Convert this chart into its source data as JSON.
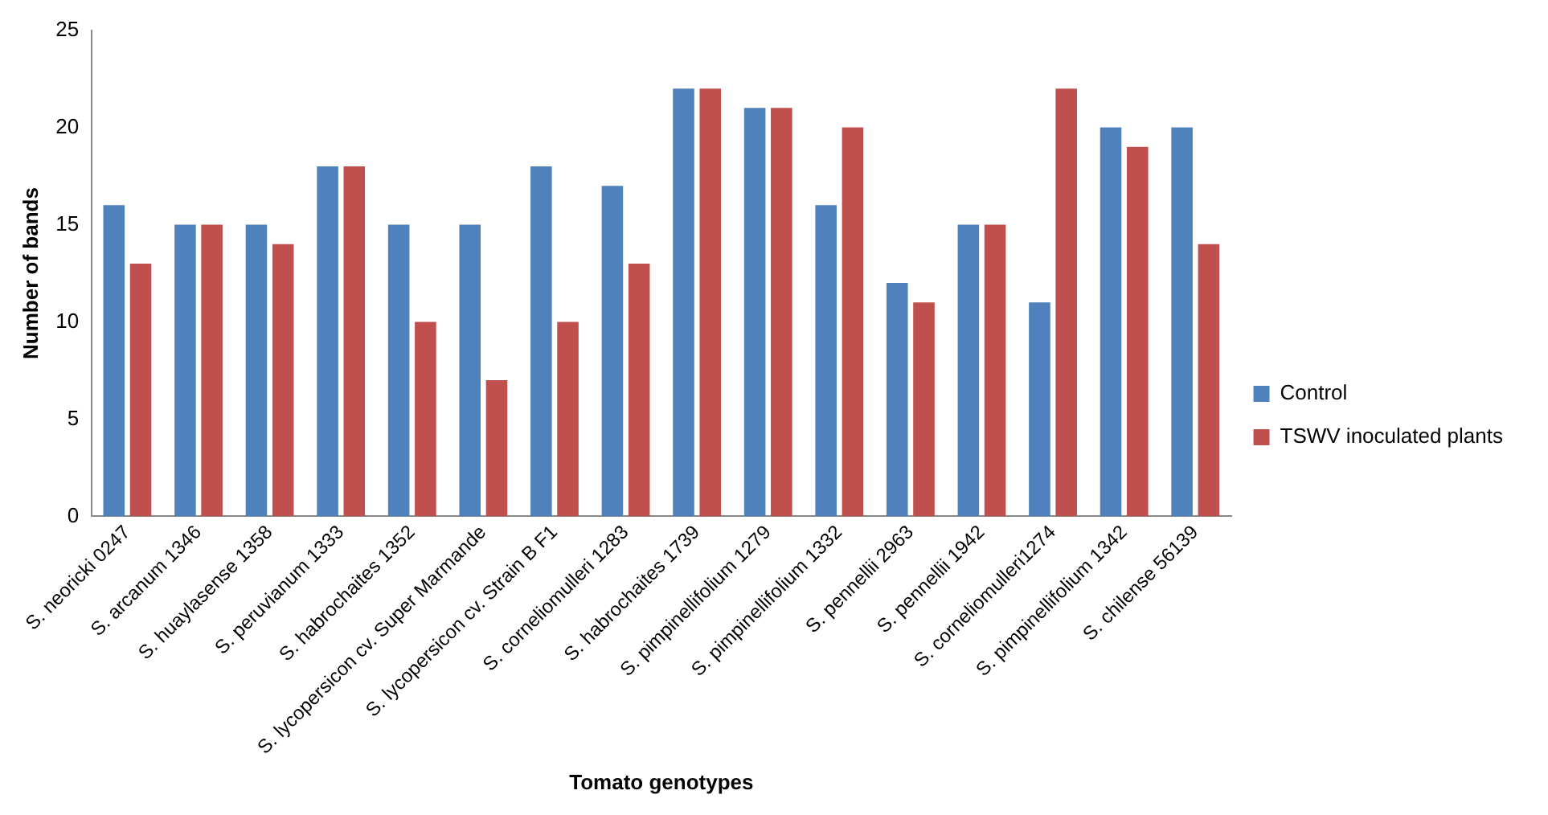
{
  "chart_data": {
    "type": "bar",
    "xlabel": "Tomato genotypes",
    "ylabel": "Number of bands",
    "categories": [
      "S. neoricki 0247",
      "S. arcanum 1346",
      "S. huaylasense 1358",
      "S. peruvianum 1333",
      "S. habrochaites 1352",
      "S. lycopersicon cv. Super Marmande",
      "S. lycopersicon cv. Strain B F1",
      "S. corneliomulleri 1283",
      "S. habrochaites 1739",
      "S. pimpinellifolium 1279",
      "S. pimpinellifolium 1332",
      "S. pennellii 2963",
      "S. pennellii 1942",
      "S. corneliomulleri1274",
      "S. pimpinellifolium 1342",
      "S. chilense 56139"
    ],
    "series": [
      {
        "name": "Control",
        "color": "#4f81bd",
        "values": [
          16,
          15,
          15,
          18,
          15,
          15,
          18,
          17,
          22,
          21,
          16,
          12,
          15,
          11,
          20,
          20
        ]
      },
      {
        "name": "TSWV inoculated plants",
        "color": "#c0504d",
        "values": [
          13,
          15,
          14,
          18,
          10,
          7,
          10,
          13,
          22,
          21,
          20,
          11,
          15,
          22,
          19,
          14
        ]
      }
    ],
    "ylim": [
      0,
      25
    ],
    "yticks": [
      0,
      5,
      10,
      15,
      20,
      25
    ],
    "grid": false,
    "legend": "right"
  }
}
